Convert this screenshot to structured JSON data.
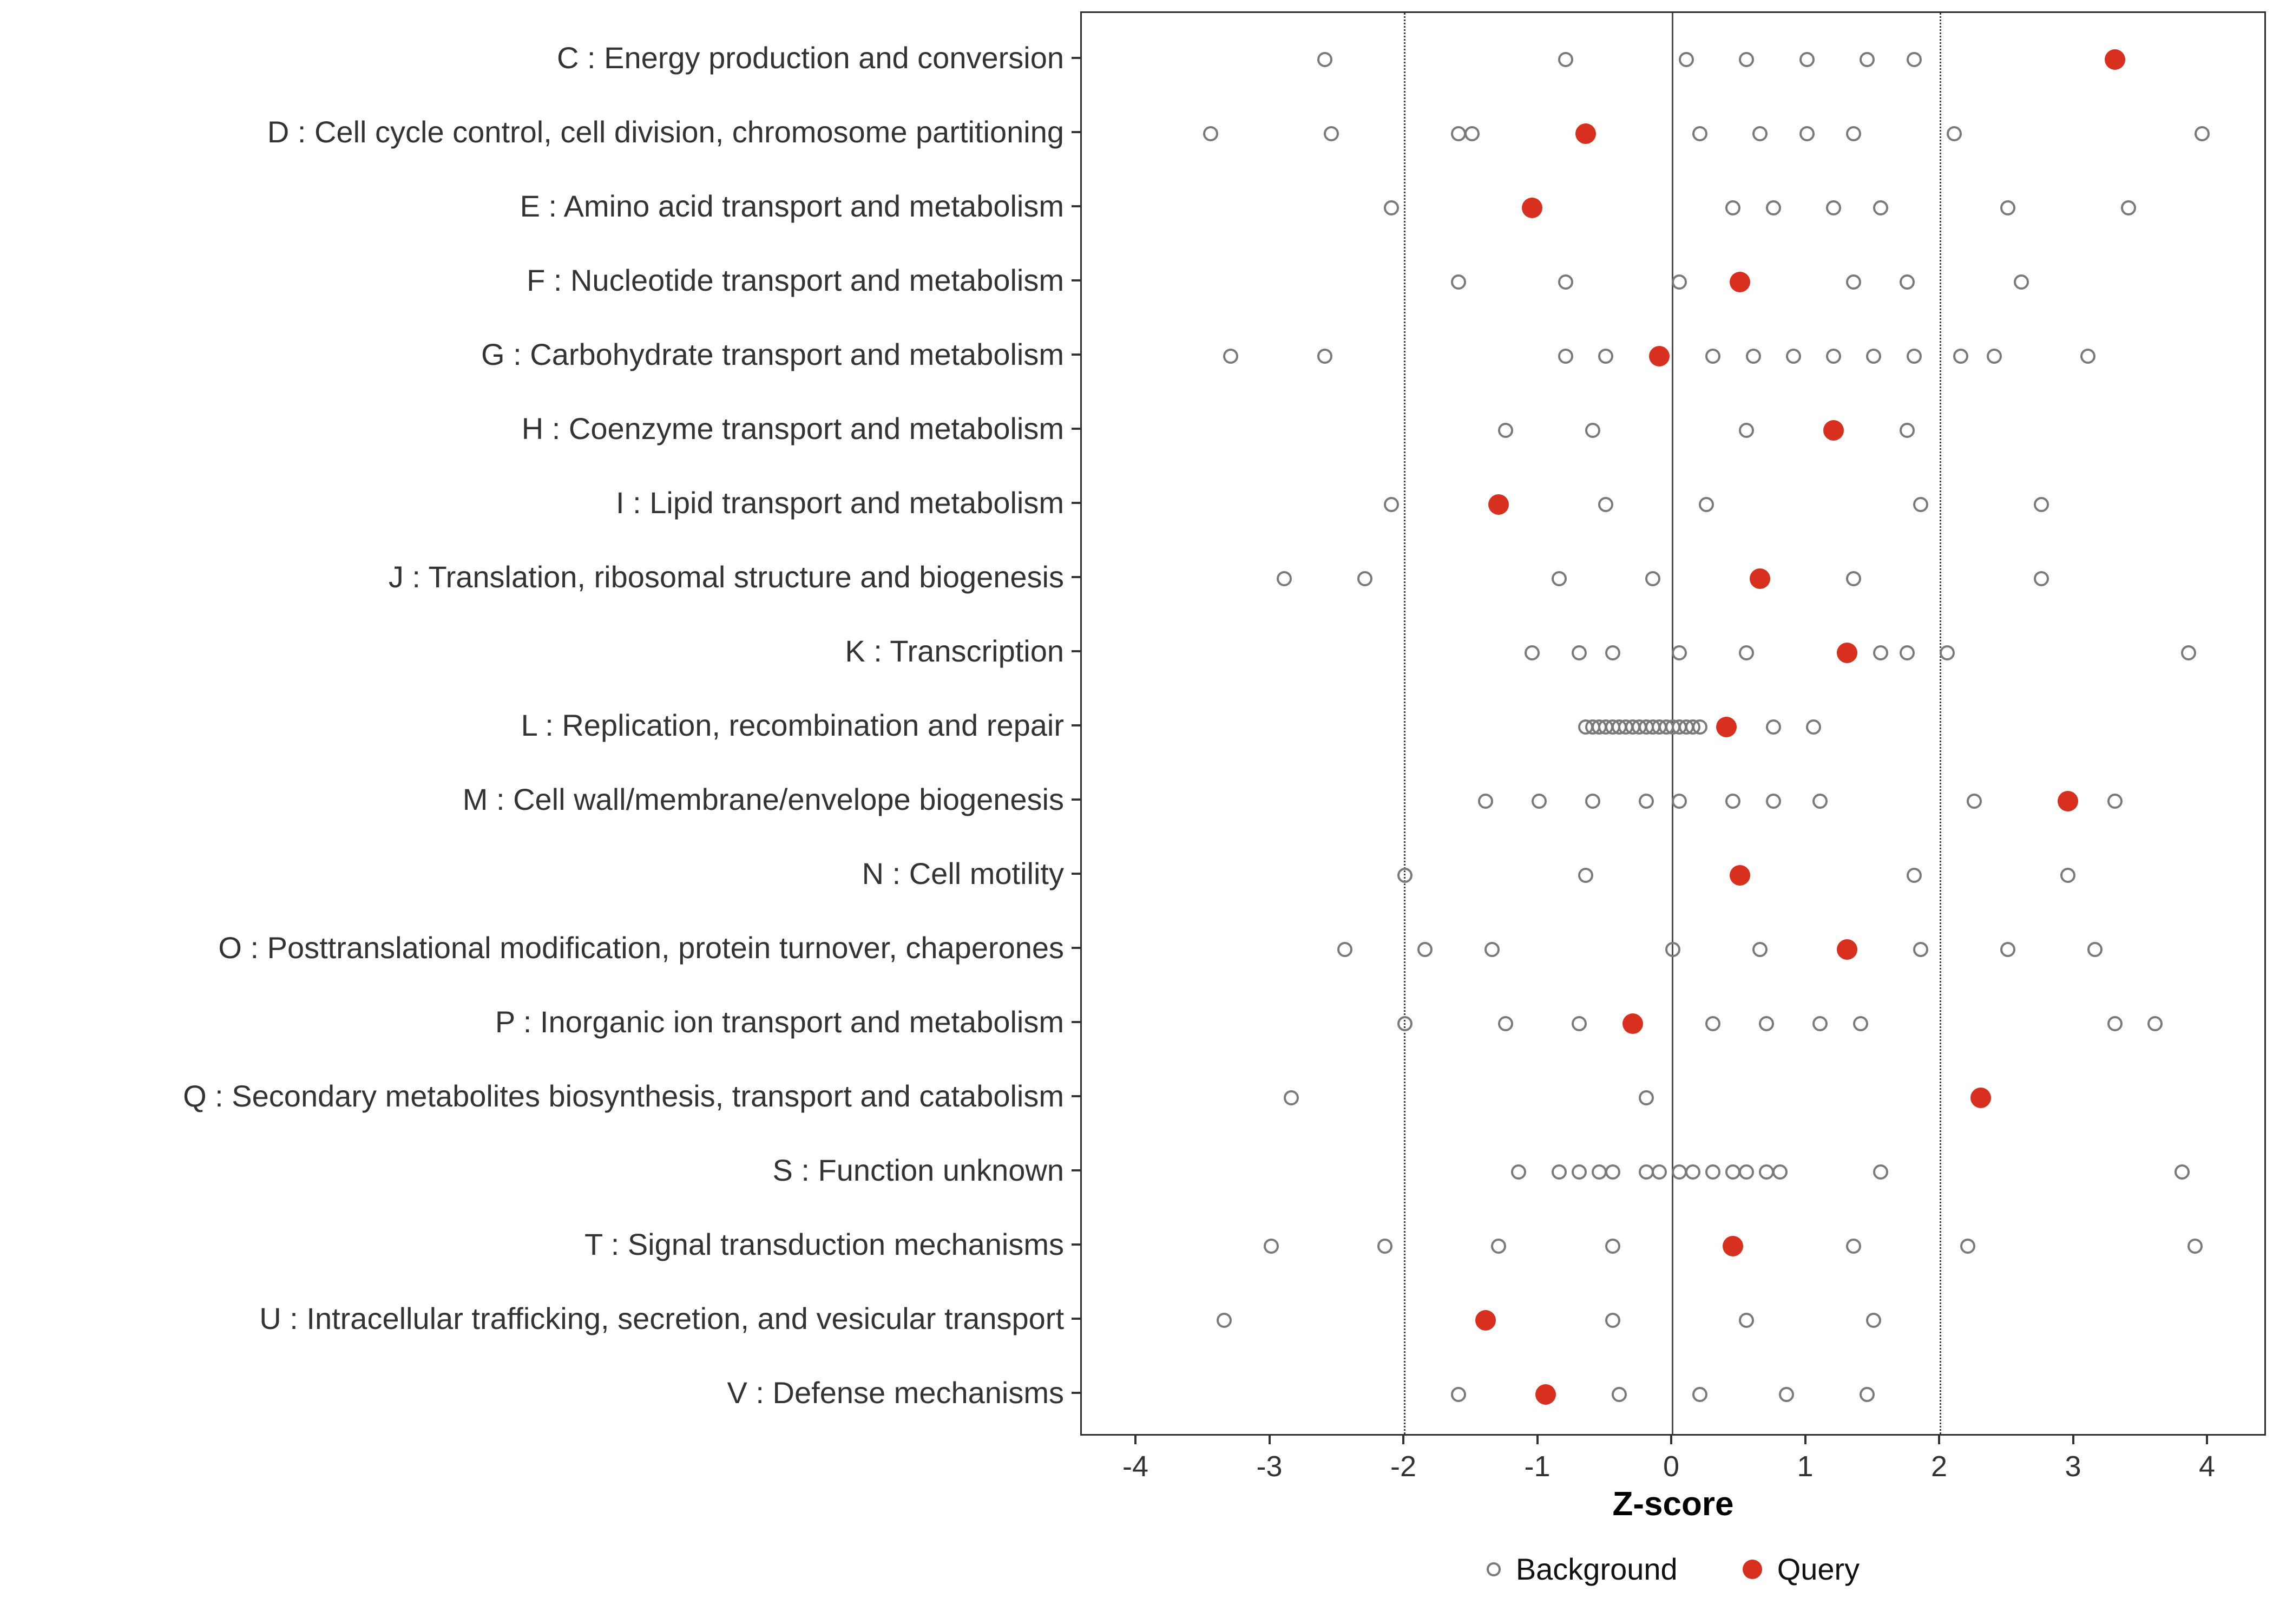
{
  "chart_data": {
    "type": "scatter",
    "title": "",
    "xlabel": "Z-score",
    "ylabel": "",
    "x_ticks": [
      -4,
      -3,
      -2,
      -1,
      0,
      1,
      2,
      3,
      4
    ],
    "xlim": [
      -4.41,
      4.45
    ],
    "grid": "off",
    "legend_position": "bottom",
    "reference_lines": {
      "solid_x": [
        0
      ],
      "dotted_x": [
        -2,
        2
      ]
    },
    "colors": {
      "background_marker": "#7a7a7a",
      "query_marker": "#d7301f"
    },
    "legend": [
      {
        "label": "Background",
        "marker": "open-circle"
      },
      {
        "label": "Query",
        "marker": "filled-circle"
      }
    ],
    "rows": [
      {
        "category": "C : Energy production and conversion",
        "background": [
          -2.6,
          -0.8,
          0.1,
          0.55,
          1.0,
          1.45,
          1.8
        ],
        "query": 3.3
      },
      {
        "category": "D : Cell cycle control, cell division, chromosome partitioning",
        "background": [
          -3.45,
          -2.55,
          -1.6,
          -1.5,
          0.2,
          0.65,
          1.0,
          1.35,
          2.1,
          3.95
        ],
        "query": -0.65
      },
      {
        "category": "E : Amino acid transport and metabolism",
        "background": [
          -2.1,
          0.45,
          0.75,
          1.2,
          1.55,
          2.5,
          3.4
        ],
        "query": -1.05
      },
      {
        "category": "F : Nucleotide transport and metabolism",
        "background": [
          -1.6,
          -0.8,
          0.05,
          1.35,
          1.75,
          2.6
        ],
        "query": 0.5
      },
      {
        "category": "G : Carbohydrate transport and metabolism",
        "background": [
          -3.3,
          -2.6,
          -0.8,
          -0.5,
          0.3,
          0.6,
          0.9,
          1.2,
          1.5,
          1.8,
          2.15,
          2.4,
          3.1
        ],
        "query": -0.1
      },
      {
        "category": "H : Coenzyme transport and metabolism",
        "background": [
          -1.25,
          -0.6,
          0.55,
          1.75
        ],
        "query": 1.2
      },
      {
        "category": "I : Lipid transport and metabolism",
        "background": [
          -2.1,
          -0.5,
          0.25,
          1.85,
          2.75
        ],
        "query": -1.3
      },
      {
        "category": "J : Translation, ribosomal structure and biogenesis",
        "background": [
          -2.9,
          -2.3,
          -0.85,
          -0.15,
          1.35,
          2.75
        ],
        "query": 0.65
      },
      {
        "category": "K : Transcription",
        "background": [
          -1.05,
          -0.7,
          -0.45,
          0.05,
          0.55,
          1.55,
          1.75,
          2.05,
          3.85
        ],
        "query": 1.3
      },
      {
        "category": "L : Replication, recombination and repair",
        "background": [
          -0.65,
          -0.6,
          -0.55,
          -0.5,
          -0.45,
          -0.4,
          -0.35,
          -0.3,
          -0.25,
          -0.2,
          -0.15,
          -0.1,
          -0.05,
          0,
          0.05,
          0.1,
          0.15,
          0.2,
          0.75,
          1.05
        ],
        "query": 0.4
      },
      {
        "category": "M : Cell wall/membrane/envelope biogenesis",
        "background": [
          -1.4,
          -1.0,
          -0.6,
          -0.2,
          0.05,
          0.45,
          0.75,
          1.1,
          2.25,
          3.3
        ],
        "query": 2.95
      },
      {
        "category": "N : Cell motility",
        "background": [
          -2.0,
          -0.65,
          1.8,
          2.95
        ],
        "query": 0.5
      },
      {
        "category": "O : Posttranslational modification, protein turnover, chaperones",
        "background": [
          -2.45,
          -1.85,
          -1.35,
          0.0,
          0.65,
          1.85,
          2.5,
          3.15
        ],
        "query": 1.3
      },
      {
        "category": "P : Inorganic ion transport and metabolism",
        "background": [
          -2.0,
          -1.25,
          -0.7,
          0.3,
          0.7,
          1.1,
          1.4,
          3.3,
          3.6
        ],
        "query": -0.3
      },
      {
        "category": "Q : Secondary metabolites biosynthesis, transport and catabolism",
        "background": [
          -2.85,
          -0.2
        ],
        "query": 2.3
      },
      {
        "category": "S : Function unknown",
        "background": [
          -1.15,
          -0.85,
          -0.7,
          -0.55,
          -0.45,
          -0.2,
          -0.1,
          0.05,
          0.15,
          0.3,
          0.45,
          0.55,
          0.7,
          0.8,
          1.55,
          3.8
        ],
        "query": null
      },
      {
        "category": "T : Signal transduction mechanisms",
        "background": [
          -3.0,
          -2.15,
          -1.3,
          -0.45,
          1.35,
          2.2,
          3.9
        ],
        "query": 0.45
      },
      {
        "category": "U : Intracellular trafficking, secretion, and vesicular transport",
        "background": [
          -3.35,
          -0.45,
          0.55,
          1.5
        ],
        "query": -1.4
      },
      {
        "category": "V : Defense mechanisms",
        "background": [
          -1.6,
          -0.4,
          0.2,
          0.85,
          1.45
        ],
        "query": -0.95
      }
    ]
  }
}
